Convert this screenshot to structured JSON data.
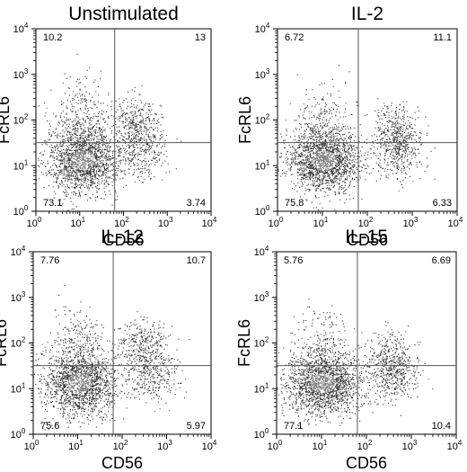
{
  "chart_data": [
    {
      "type": "scatter",
      "title": "Unstimulated",
      "xlabel": "CD56",
      "ylabel": "FcRL6",
      "xscale": "log",
      "yscale": "log",
      "xlim": [
        1,
        10000
      ],
      "ylim": [
        1,
        10000
      ],
      "x_ticks": [
        1,
        10,
        100,
        1000,
        10000
      ],
      "y_ticks": [
        1,
        10,
        100,
        1000,
        10000
      ],
      "gate": {
        "x": 63,
        "y": 32
      },
      "quadrant_percentages": {
        "upper_left": "10.2",
        "upper_right": "13",
        "lower_left": "73.1",
        "lower_right": "3.74"
      },
      "populations": [
        {
          "cx": 12,
          "cy": 13,
          "sx": 0.42,
          "sy": 0.36,
          "weight": 0.62
        },
        {
          "cx": 12,
          "cy": 90,
          "sx": 0.32,
          "sy": 0.45,
          "weight": 0.14
        },
        {
          "cx": 180,
          "cy": 70,
          "sx": 0.26,
          "sy": 0.32,
          "weight": 0.16
        },
        {
          "cx": 250,
          "cy": 16,
          "sx": 0.3,
          "sy": 0.28,
          "weight": 0.08
        }
      ]
    },
    {
      "type": "scatter",
      "title": "IL-2",
      "xlabel": "CD56",
      "ylabel": "FcRL6",
      "xscale": "log",
      "yscale": "log",
      "xlim": [
        1,
        10000
      ],
      "ylim": [
        1,
        10000
      ],
      "x_ticks": [
        1,
        10,
        100,
        1000,
        10000
      ],
      "y_ticks": [
        1,
        10,
        100,
        1000,
        10000
      ],
      "gate": {
        "x": 63,
        "y": 32
      },
      "quadrant_percentages": {
        "upper_left": "6.72",
        "upper_right": "11.1",
        "lower_left": "75.8",
        "lower_right": "6.33"
      },
      "populations": [
        {
          "cx": 11,
          "cy": 13,
          "sx": 0.4,
          "sy": 0.34,
          "weight": 0.66
        },
        {
          "cx": 10,
          "cy": 80,
          "sx": 0.3,
          "sy": 0.4,
          "weight": 0.1
        },
        {
          "cx": 450,
          "cy": 50,
          "sx": 0.24,
          "sy": 0.32,
          "weight": 0.16
        },
        {
          "cx": 500,
          "cy": 16,
          "sx": 0.26,
          "sy": 0.26,
          "weight": 0.08
        }
      ]
    },
    {
      "type": "scatter",
      "title": "IL-12",
      "xlabel": "CD56",
      "ylabel": "FcRL6",
      "xscale": "log",
      "yscale": "log",
      "xlim": [
        1,
        10000
      ],
      "ylim": [
        1,
        10000
      ],
      "x_ticks": [
        1,
        10,
        100,
        1000,
        10000
      ],
      "y_ticks": [
        1,
        10,
        100,
        1000,
        10000
      ],
      "gate": {
        "x": 63,
        "y": 32
      },
      "quadrant_percentages": {
        "upper_left": "7.76",
        "upper_right": "10.7",
        "lower_left": "75.6",
        "lower_right": "5.97"
      },
      "populations": [
        {
          "cx": 11,
          "cy": 13,
          "sx": 0.42,
          "sy": 0.36,
          "weight": 0.64
        },
        {
          "cx": 10,
          "cy": 90,
          "sx": 0.3,
          "sy": 0.42,
          "weight": 0.11
        },
        {
          "cx": 300,
          "cy": 70,
          "sx": 0.3,
          "sy": 0.32,
          "weight": 0.16
        },
        {
          "cx": 500,
          "cy": 16,
          "sx": 0.28,
          "sy": 0.26,
          "weight": 0.09
        }
      ]
    },
    {
      "type": "scatter",
      "title": "IL-15",
      "xlabel": "CD56",
      "ylabel": "FcRL6",
      "xscale": "log",
      "yscale": "log",
      "xlim": [
        1,
        10000
      ],
      "ylim": [
        1,
        10000
      ],
      "x_ticks": [
        1,
        10,
        100,
        1000,
        10000
      ],
      "y_ticks": [
        1,
        10,
        100,
        1000,
        10000
      ],
      "gate": {
        "x": 63,
        "y": 32
      },
      "quadrant_percentages": {
        "upper_left": "5.76",
        "upper_right": "6.69",
        "lower_left": "77.1",
        "lower_right": "10.4"
      },
      "populations": [
        {
          "cx": 11,
          "cy": 13,
          "sx": 0.42,
          "sy": 0.36,
          "weight": 0.68
        },
        {
          "cx": 10,
          "cy": 80,
          "sx": 0.3,
          "sy": 0.4,
          "weight": 0.09
        },
        {
          "cx": 350,
          "cy": 45,
          "sx": 0.26,
          "sy": 0.3,
          "weight": 0.12
        },
        {
          "cx": 400,
          "cy": 18,
          "sx": 0.28,
          "sy": 0.26,
          "weight": 0.11
        }
      ]
    }
  ]
}
